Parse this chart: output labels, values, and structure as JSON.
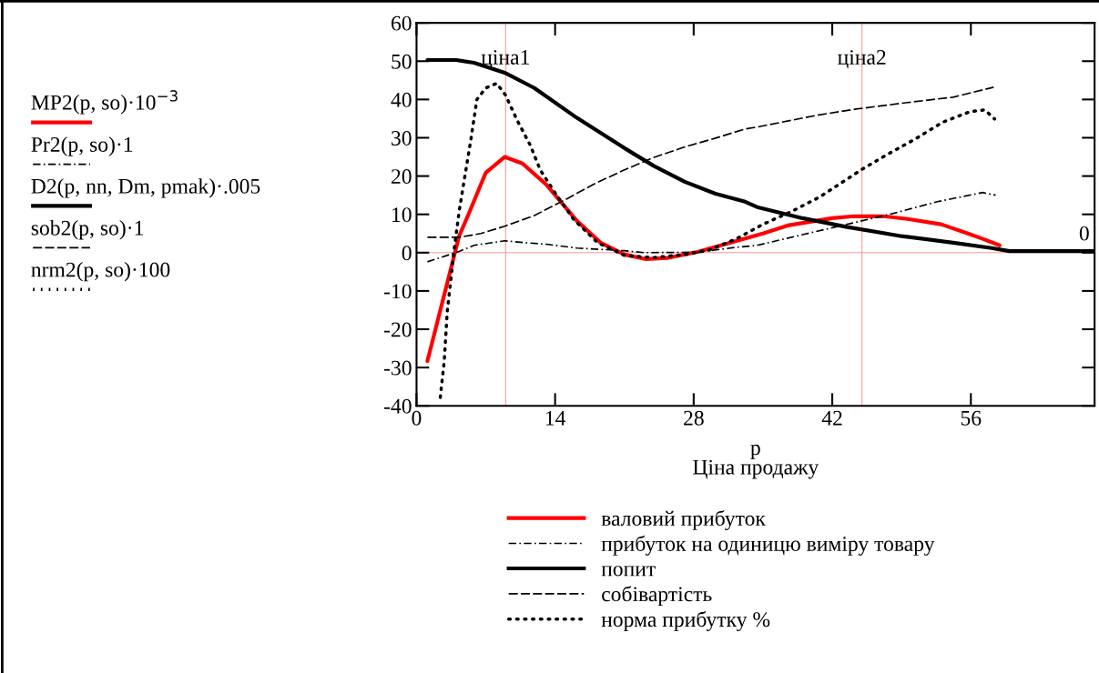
{
  "chart_data": {
    "type": "line",
    "xlabel": "p\nЦіна продажу",
    "xlim": [
      0,
      68.5
    ],
    "ylim": [
      -40,
      60
    ],
    "xticks": [
      0,
      14,
      28,
      42,
      56
    ],
    "yticks": [
      -40,
      -30,
      -20,
      -10,
      0,
      10,
      20,
      30,
      40,
      50,
      60
    ],
    "grid": false,
    "legend": "bottom",
    "marker": "none",
    "series": [
      {
        "name": "валовий прибуток",
        "color": "#ff0000",
        "line_style": "solid",
        "x": [
          1.1,
          4.3,
          5.2,
          7.0,
          8.9,
          10.7,
          13.1,
          16.2,
          18.6,
          21,
          23.2,
          25.3,
          28.4,
          31.4,
          35,
          37.5,
          42,
          44.2,
          47.2,
          49.6,
          53,
          55.7,
          57.2,
          58.9
        ],
        "values": [
          -28.3,
          4.3,
          9.7,
          20.9,
          25,
          23.3,
          17.8,
          8.3,
          2.6,
          -0.5,
          -1.7,
          -1.4,
          0.2,
          2.4,
          5,
          7.1,
          9,
          9.5,
          9.5,
          8.8,
          7.4,
          5,
          3.6,
          1.9
        ]
      },
      {
        "name": "прибуток на одиницю виміру товару",
        "color": "#000000",
        "line_style": "dashdot",
        "x": [
          1.1,
          4.3,
          5.8,
          8.9,
          11,
          13.1,
          16.2,
          21,
          23,
          28.4,
          32.3,
          34.4,
          39,
          43.5,
          48.1,
          52.6,
          57.2,
          58.5
        ],
        "values": [
          -2.4,
          0.3,
          1.9,
          3.1,
          2.6,
          2.2,
          1.2,
          0.5,
          0,
          0.1,
          1.4,
          1.9,
          4.7,
          7.4,
          10.2,
          13.3,
          15.7,
          15
        ]
      },
      {
        "name": "попит",
        "color": "#000000",
        "line_style": "solid",
        "x": [
          1.1,
          4,
          5.8,
          8.9,
          11.9,
          16.2,
          21,
          24,
          27.1,
          30.2,
          33.2,
          34.4,
          39,
          43.5,
          49,
          54.2,
          58.1,
          59.9,
          68.5
        ],
        "values": [
          50.3,
          50.3,
          49.6,
          47,
          43,
          35.2,
          27.3,
          22.6,
          18.5,
          15.4,
          13.3,
          11.9,
          9,
          6.7,
          4.3,
          2.6,
          1.2,
          0.4,
          0.4
        ]
      },
      {
        "name": "собівартість",
        "color": "#000000",
        "line_style": "dashed",
        "x": [
          1.1,
          4.3,
          6.5,
          8.9,
          11.9,
          15,
          18,
          21,
          24,
          27.1,
          30.2,
          33.2,
          34.4,
          40.5,
          44.4,
          49.6,
          54.2,
          58.3
        ],
        "values": [
          4,
          4,
          5,
          6.9,
          9.7,
          13.8,
          18,
          21.6,
          24.9,
          27.6,
          29.9,
          32.3,
          32.8,
          35.9,
          37.5,
          39.2,
          40.6,
          43.2
        ]
      },
      {
        "name": "норма прибутку %",
        "color": "#000000",
        "line_style": "dotted",
        "x": [
          2.4,
          2.8,
          3.1,
          3.8,
          4.3,
          4.9,
          5.5,
          6.1,
          7.0,
          8.1,
          9,
          10.2,
          11.5,
          12.5,
          14.1,
          15.9,
          18.3,
          21,
          23.9,
          27.1,
          29.6,
          32.3,
          35,
          38,
          40.7,
          43.5,
          44.9,
          47.6,
          50.4,
          53.1,
          55.9,
          57.4,
          58.4
        ],
        "values": [
          -37.8,
          -28.3,
          -15.5,
          0.7,
          10.7,
          20.2,
          29.7,
          40,
          43,
          44.2,
          41.1,
          34.4,
          28,
          21.6,
          15.2,
          8.6,
          2.6,
          -0.7,
          -1.3,
          -0.5,
          0.7,
          3.6,
          7.4,
          10.9,
          14.5,
          19.2,
          21.6,
          25.7,
          29.7,
          34,
          36.8,
          37.3,
          34.9
        ]
      }
    ],
    "ref_lines": [
      {
        "axis": "x",
        "value": 9,
        "label": "ціна1",
        "color": "#ff9999"
      },
      {
        "axis": "x",
        "value": 45,
        "label": "ціна2",
        "color": "#ff9999"
      },
      {
        "axis": "y",
        "value": 0,
        "label": "0",
        "color": "#ff9999"
      }
    ],
    "annotations": [
      "MP2(p, so)·10$^{−3}$",
      "Pr2(p, so)·1",
      "D2(p, nn, Dm, pmak)·.005",
      "sob2(p, so)·1",
      "nrm2(p, so)·100"
    ]
  }
}
